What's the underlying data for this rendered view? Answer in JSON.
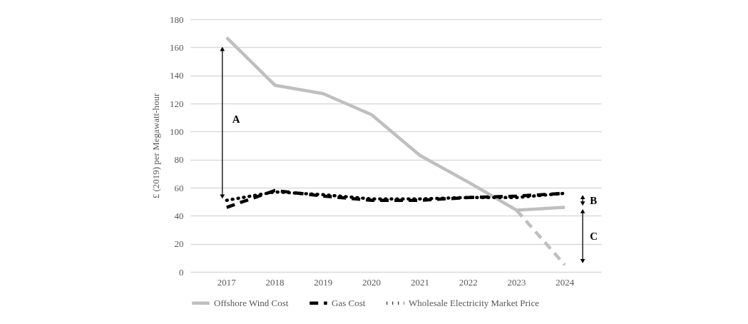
{
  "chart_data": {
    "type": "line",
    "ylabel": "£ (2019) per Megawatt-hour",
    "categories": [
      "2017",
      "2018",
      "2019",
      "2020",
      "2021",
      "2022",
      "2023",
      "2024"
    ],
    "series": [
      {
        "name": "Offshore Wind Cost",
        "color": "#bfbfbf",
        "line_style": "solid",
        "values": [
          167,
          133,
          127,
          112,
          83,
          64,
          44,
          46
        ]
      },
      {
        "color": "#bfbfbf",
        "line_style": "dashed",
        "values": [
          null,
          null,
          null,
          null,
          null,
          null,
          44,
          5
        ]
      },
      {
        "name": "Gas Cost",
        "color": "#000000",
        "line_style": "dashed",
        "values": [
          46,
          58,
          54,
          51,
          51,
          53,
          54,
          56
        ]
      },
      {
        "name": "Wholesale Electricity Market Price",
        "color": "#000000",
        "line_style": "dotted",
        "values": [
          51,
          57,
          55,
          52,
          52,
          53,
          53,
          56
        ]
      }
    ],
    "ylim": [
      0,
      180
    ],
    "yticks": [
      0,
      20,
      40,
      60,
      80,
      100,
      120,
      140,
      160,
      180
    ],
    "grid": "y",
    "legend": "bottom",
    "marker": "none",
    "annotations": [
      "A",
      "B",
      "C"
    ]
  }
}
